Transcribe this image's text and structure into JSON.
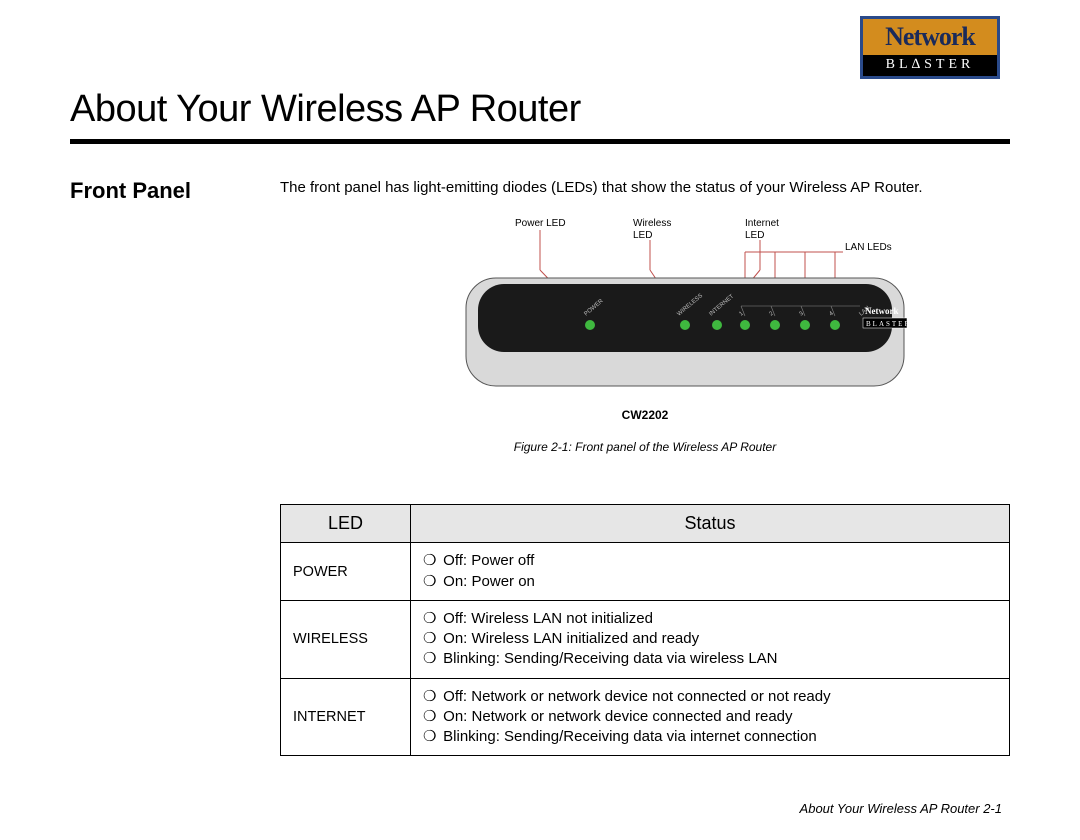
{
  "logo": {
    "top": "Network",
    "bottom": "BL∆STER",
    "border": "#2a4a8a",
    "bg": "#d38c1e"
  },
  "title": "About Your Wireless AP Router",
  "section": "Front Panel",
  "intro": "The front panel has light-emitting diodes (LEDs) that show the status of your Wireless AP Router.",
  "diagram": {
    "labels": {
      "power": "Power LED",
      "wireless_l1": "Wireless",
      "wireless_l2": "LED",
      "internet_l1": "Internet",
      "internet_l2": "LED",
      "lan": "LAN LEDs"
    },
    "model": "CW2202",
    "caption": "Figure 2-1:  Front panel of the Wireless AP Router",
    "led_color": "#3fb83f",
    "body_color": "#1a1a1a",
    "shell_color": "#d9d9d9",
    "device_logo_top": "Network",
    "device_logo_bottom": "BLASTER"
  },
  "table": {
    "headers": [
      "LED",
      "Status"
    ],
    "rows": [
      {
        "led": "POWER",
        "items": [
          "Off: Power off",
          "On: Power on"
        ]
      },
      {
        "led": "WIRELESS",
        "items": [
          "Off: Wireless LAN not initialized",
          "On: Wireless LAN initialized and ready",
          "Blinking: Sending/Receiving data via wireless LAN"
        ]
      },
      {
        "led": "INTERNET",
        "items": [
          "Off: Network or network device not connected or not ready",
          "On: Network or network device connected and ready",
          "Blinking: Sending/Receiving data via internet connection"
        ]
      }
    ]
  },
  "footer": "About Your Wireless AP Router  2-1"
}
